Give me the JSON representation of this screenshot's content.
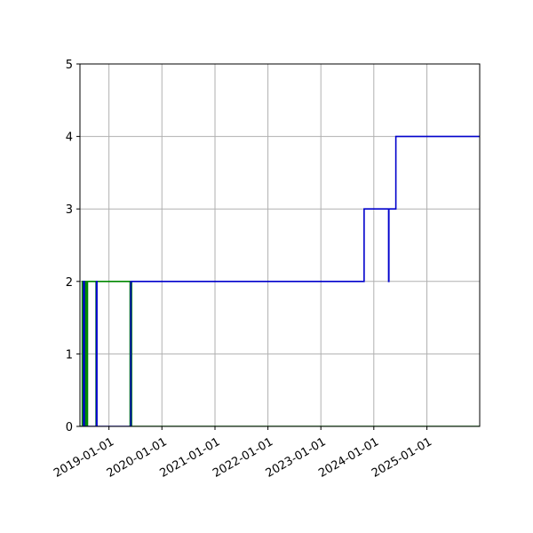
{
  "chart_data": {
    "type": "line",
    "title": "",
    "xlabel": "",
    "ylabel": "",
    "xlim": [
      "2018-06-15",
      "2025-12-31"
    ],
    "ylim": [
      0,
      5
    ],
    "grid": true,
    "x_ticks": [
      "2019-01-01",
      "2020-01-01",
      "2021-01-01",
      "2022-01-01",
      "2023-01-01",
      "2024-01-01",
      "2025-01-01"
    ],
    "y_ticks": [
      "0",
      "1",
      "2",
      "3",
      "4",
      "5"
    ],
    "series": [
      {
        "color": "#0000cc",
        "step": "post",
        "points": [
          [
            "2018-07-05",
            0
          ],
          [
            "2018-07-10",
            2
          ],
          [
            "2018-07-15",
            0
          ],
          [
            "2018-10-05",
            0
          ],
          [
            "2018-10-07",
            2
          ],
          [
            "2018-10-10",
            0
          ],
          [
            "2019-05-30",
            0
          ],
          [
            "2019-06-01",
            2
          ],
          [
            "2023-10-26",
            3
          ],
          [
            "2024-04-12",
            2
          ],
          [
            "2024-04-14",
            3
          ],
          [
            "2024-06-01",
            4
          ],
          [
            "2025-12-31",
            4
          ]
        ]
      },
      {
        "color": "#008800",
        "step": "post",
        "points": [
          [
            "2018-06-15",
            0
          ],
          [
            "2018-07-01",
            2
          ],
          [
            "2018-07-02",
            0
          ],
          [
            "2018-07-08",
            2
          ],
          [
            "2018-07-10",
            0
          ],
          [
            "2018-07-12",
            2
          ],
          [
            "2018-07-14",
            0
          ],
          [
            "2018-07-17",
            2
          ],
          [
            "2018-07-20",
            0
          ],
          [
            "2018-07-23",
            2
          ],
          [
            "2018-07-25",
            0
          ],
          [
            "2018-07-29",
            2
          ],
          [
            "2018-07-31",
            0
          ],
          [
            "2018-08-03",
            2
          ],
          [
            "2018-08-04",
            0
          ],
          [
            "2018-08-06",
            2
          ],
          [
            "2018-10-04",
            0
          ],
          [
            "2018-10-08",
            2
          ],
          [
            "2019-05-27",
            0
          ],
          [
            "2019-05-30",
            2
          ],
          [
            "2019-06-02",
            0
          ],
          [
            "2019-06-04",
            2
          ],
          [
            "2019-06-06",
            0
          ],
          [
            "2025-12-31",
            0
          ]
        ]
      }
    ]
  }
}
